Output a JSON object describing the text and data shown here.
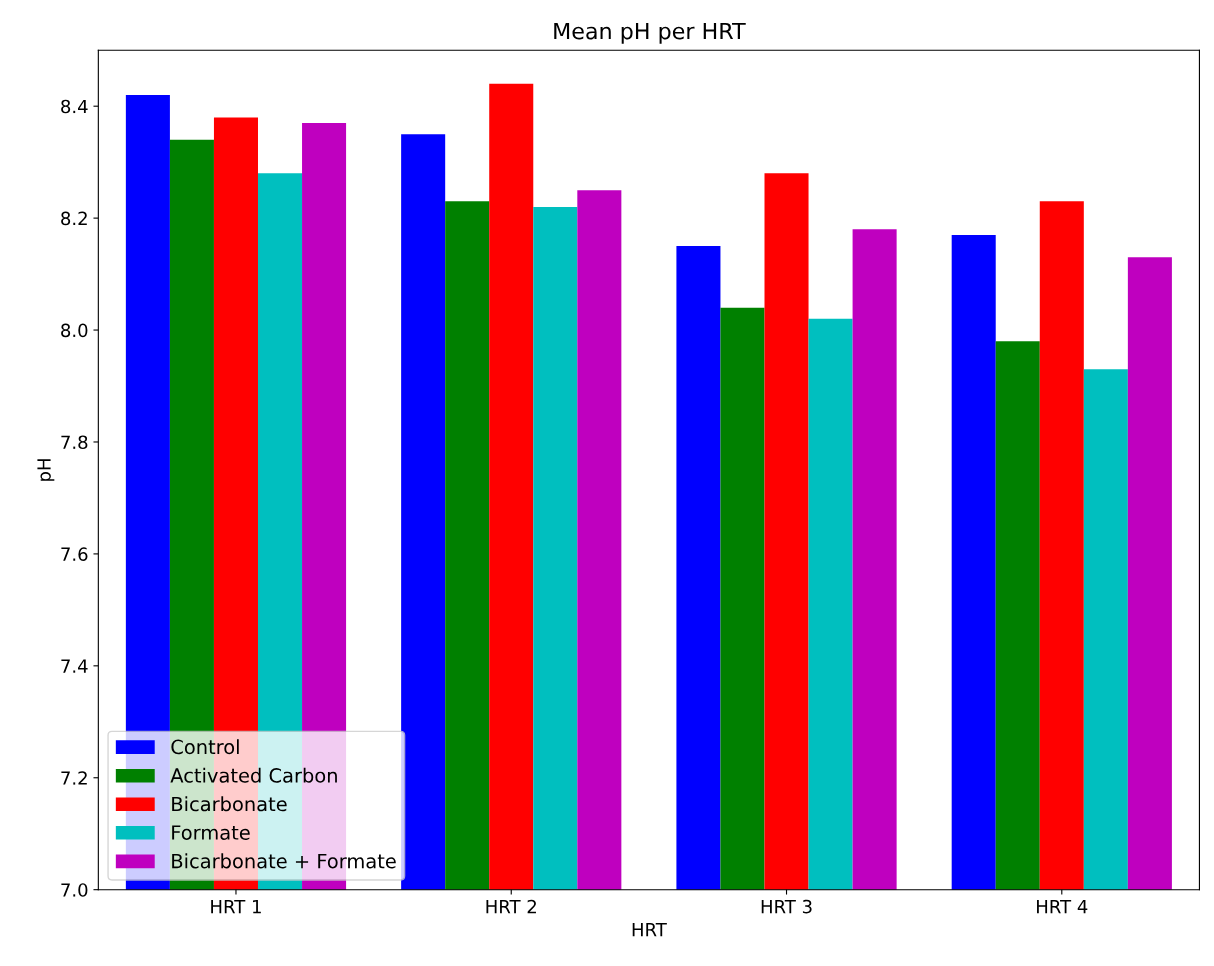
{
  "chart_data": {
    "type": "bar",
    "title": "Mean pH per HRT",
    "xlabel": "HRT",
    "ylabel": "pH",
    "categories": [
      "HRT 1",
      "HRT 2",
      "HRT 3",
      "HRT 4"
    ],
    "series": [
      {
        "name": "Control",
        "color": "#0000ff",
        "values": [
          8.42,
          8.35,
          8.15,
          8.17
        ]
      },
      {
        "name": "Activated Carbon",
        "color": "#008000",
        "values": [
          8.34,
          8.23,
          8.04,
          7.98
        ]
      },
      {
        "name": "Bicarbonate",
        "color": "#ff0000",
        "values": [
          8.38,
          8.44,
          8.28,
          8.23
        ]
      },
      {
        "name": "Formate",
        "color": "#00bfbf",
        "values": [
          8.28,
          8.22,
          8.02,
          7.93
        ]
      },
      {
        "name": "Bicarbonate + Formate",
        "color": "#bf00bf",
        "values": [
          8.37,
          8.25,
          8.18,
          8.13
        ]
      }
    ],
    "ylim": [
      7.0,
      8.5
    ],
    "yticks": [
      {
        "value": 7,
        "label": "7.0"
      },
      7.2,
      7.4,
      7.6,
      7.8,
      {
        "value": 8,
        "label": "8.0"
      },
      8.2,
      8.4
    ],
    "legend": "bottom left",
    "grid": false
  }
}
